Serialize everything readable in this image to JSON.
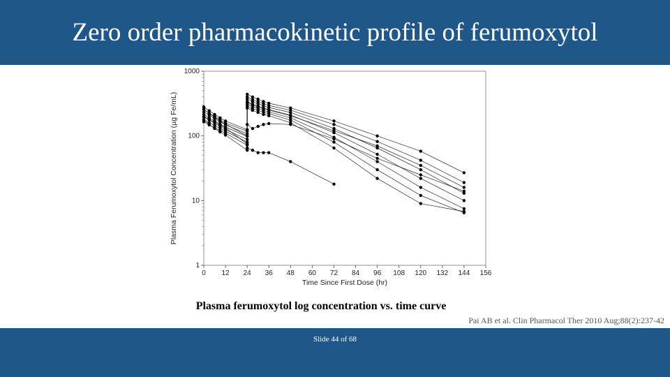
{
  "slide": {
    "title": "Zero order pharmacokinetic profile of ferumoxytol",
    "caption": "Plasma ferumoxytol log concentration vs. time curve",
    "citation": "Pai AB et al. Clin Pharmacol Ther 2010 Aug;88(2):237-42",
    "slide_number": "Slide 44 of 68"
  },
  "colors": {
    "header": "#1f578a",
    "footer": "#1f578a",
    "data": "#000000"
  },
  "chart_data": {
    "type": "line",
    "title": "",
    "xlabel": "Time Since First Dose (hr)",
    "ylabel": "Plasma Ferumoxytol Concentration (µg Fe/mL)",
    "xlim": [
      0,
      156
    ],
    "ylim": [
      1,
      1000
    ],
    "yscale": "log",
    "xticks": [
      0,
      12,
      24,
      36,
      48,
      60,
      72,
      84,
      96,
      108,
      120,
      132,
      144,
      156
    ],
    "yticks": [
      1,
      10,
      100,
      1000
    ],
    "ytick_labels": [
      "1",
      "10",
      "100",
      "1000"
    ],
    "grid": false,
    "legend": "none",
    "x": [
      0,
      3,
      6,
      9,
      12,
      24,
      24,
      27,
      30,
      33,
      36,
      48,
      72,
      96,
      120,
      144
    ],
    "series": [
      {
        "values": [
          280,
          245,
          215,
          190,
          170,
          125,
          440,
          400,
          370,
          340,
          320,
          270,
          170,
          100,
          58,
          27
        ]
      },
      {
        "values": [
          255,
          225,
          200,
          178,
          158,
          118,
          400,
          365,
          340,
          315,
          295,
          250,
          150,
          82,
          42,
          19
        ]
      },
      {
        "values": [
          235,
          208,
          185,
          165,
          148,
          108,
          370,
          340,
          315,
          292,
          275,
          230,
          130,
          65,
          30,
          13
        ]
      },
      {
        "values": [
          215,
          190,
          170,
          152,
          137,
          98,
          340,
          312,
          290,
          270,
          255,
          210,
          112,
          52,
          22,
          10
        ]
      },
      {
        "values": [
          195,
          175,
          157,
          140,
          126,
          88,
          310,
          285,
          265,
          248,
          235,
          190,
          95,
          40,
          16,
          7.5
        ]
      },
      {
        "values": [
          180,
          160,
          145,
          130,
          118,
          80,
          290,
          265,
          248,
          232,
          220,
          175,
          80,
          30,
          12,
          6.5
        ]
      },
      {
        "values": [
          165,
          148,
          134,
          121,
          110,
          72,
          270,
          248,
          230,
          215,
          205,
          160,
          65,
          22,
          9,
          6.8
        ]
      },
      {
        "values": [
          260,
          220,
          195,
          170,
          152,
          100,
          330,
          300,
          280,
          265,
          250,
          205,
          120,
          70,
          35,
          16
        ]
      },
      {
        "values": [
          200,
          180,
          162,
          147,
          133,
          75,
          150,
          130,
          140,
          150,
          155,
          150,
          90,
          45,
          25,
          14
        ]
      },
      {
        "values": [
          175,
          150,
          130,
          115,
          103,
          60,
          65,
          60,
          55,
          55,
          55,
          40,
          18,
          null,
          null,
          null
        ]
      }
    ]
  }
}
